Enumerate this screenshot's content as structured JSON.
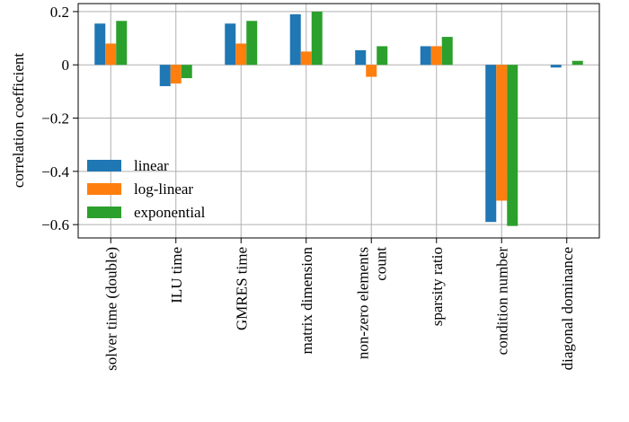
{
  "chart_data": {
    "type": "bar",
    "ylabel": "correlation coefficient",
    "xlabel": "",
    "ylim": [
      -0.65,
      0.23
    ],
    "yticks": [
      0.2,
      0,
      -0.2,
      -0.4,
      -0.6
    ],
    "ytick_labels": [
      "0.2",
      "0",
      "−0.2",
      "−0.4",
      "−0.6"
    ],
    "grid": true,
    "legend_position": "center-left",
    "categories": [
      "solver time (double)",
      "ILU time",
      "GMRES time",
      "matrix dimension",
      "non-zero elements count",
      "sparsity ratio",
      "condition number",
      "diagonal dominance"
    ],
    "category_label_lines": [
      [
        "solver time (double)"
      ],
      [
        "ILU time"
      ],
      [
        "GMRES time"
      ],
      [
        "matrix dimension"
      ],
      [
        "non-zero elements",
        "count"
      ],
      [
        "sparsity ratio"
      ],
      [
        "condition number"
      ],
      [
        "diagonal dominance"
      ]
    ],
    "series": [
      {
        "name": "linear",
        "color": "#1f77b4",
        "values": [
          0.155,
          -0.08,
          0.155,
          0.19,
          0.055,
          0.07,
          -0.59,
          -0.01
        ]
      },
      {
        "name": "log-linear",
        "color": "#ff7f0e",
        "values": [
          0.08,
          -0.07,
          0.08,
          0.05,
          -0.045,
          0.07,
          -0.51,
          0.0
        ]
      },
      {
        "name": "exponential",
        "color": "#2ca02c",
        "values": [
          0.165,
          -0.05,
          0.165,
          0.2,
          0.07,
          0.105,
          -0.605,
          0.015
        ]
      }
    ]
  }
}
